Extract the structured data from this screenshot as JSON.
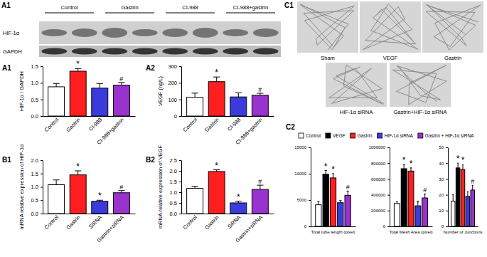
{
  "chart_data": [
    {
      "type": "bar",
      "title": "A1",
      "ylabel": "HIF-1α / GAPDH",
      "categories": [
        "Control",
        "Gastrin",
        "CI-988",
        "CI-988+gastrin"
      ],
      "values": [
        0.88,
        1.35,
        0.84,
        0.93
      ],
      "errors": [
        0.1,
        0.08,
        0.14,
        0.08
      ],
      "colors": [
        "#ffffff",
        "#ff1f1f",
        "#3b3bdc",
        "#9a32cd"
      ],
      "annotations": [
        null,
        "*",
        null,
        "#"
      ],
      "ylim": [
        0,
        1.5
      ],
      "yticks": [
        {
          "value": 0,
          "label": "0.0"
        },
        0.5,
        {
          "value": 1,
          "label": "1.0"
        },
        1.5
      ]
    },
    {
      "type": "bar",
      "title": "A2",
      "ylabel": "VEGF (ng/L)",
      "categories": [
        "Control",
        "Gastrin",
        "CI-988",
        "CI-988+gastrin"
      ],
      "values": [
        113,
        207,
        115,
        125
      ],
      "errors": [
        25,
        28,
        25,
        12
      ],
      "colors": [
        "#ffffff",
        "#ff1f1f",
        "#3b3bdc",
        "#9a32cd"
      ],
      "annotations": [
        null,
        "*",
        null,
        "#"
      ],
      "ylim": [
        0,
        300
      ],
      "yticks": [
        0,
        100,
        200,
        300
      ]
    },
    {
      "type": "bar",
      "title": "B1",
      "ylabel": "mRNA relative expression of HIF-1α",
      "categories": [
        "Control",
        "Gastrin",
        "SiRNA",
        "Gastrin+siRNA"
      ],
      "values": [
        1.08,
        1.45,
        0.46,
        0.78
      ],
      "errors": [
        0.18,
        0.15,
        0.04,
        0.08
      ],
      "colors": [
        "#ffffff",
        "#ff1f1f",
        "#3b3bdc",
        "#9a32cd"
      ],
      "annotations": [
        null,
        "*",
        "*",
        "#"
      ],
      "ylim": [
        0,
        2
      ],
      "yticks": [
        {
          "value": 0,
          "label": "0.0"
        },
        0.5,
        {
          "value": 1,
          "label": "1.0"
        },
        1.5,
        {
          "value": 2,
          "label": "2.0"
        }
      ]
    },
    {
      "type": "bar",
      "title": "B2",
      "ylabel": "mRNA relative expression of VEGF",
      "categories": [
        "Control",
        "Gastrin",
        "SiRNA",
        "Gastrin+siRNA"
      ],
      "values": [
        1.18,
        1.97,
        0.5,
        1.13
      ],
      "errors": [
        0.1,
        0.08,
        0.08,
        0.2
      ],
      "colors": [
        "#ffffff",
        "#ff1f1f",
        "#3b3bdc",
        "#9a32cd"
      ],
      "annotations": [
        null,
        "*",
        "*",
        "#"
      ],
      "ylim": [
        0,
        2.5
      ],
      "yticks": [
        {
          "value": 0,
          "label": "0.0"
        },
        0.5,
        {
          "value": 1,
          "label": "1.0"
        },
        1.5,
        {
          "value": 2,
          "label": "2.0"
        },
        2.5
      ]
    },
    {
      "type": "bar",
      "title": "C2",
      "categories": [
        "Total tube length (pixel)"
      ],
      "series": [
        {
          "name": "Control",
          "color": "#ffffff",
          "values": [
            4100
          ],
          "errors": [
            600
          ],
          "annotations": [
            null
          ]
        },
        {
          "name": "VEGF",
          "color": "#000000",
          "values": [
            9900
          ],
          "errors": [
            700
          ],
          "annotations": [
            "*"
          ]
        },
        {
          "name": "Gastrin",
          "color": "#ff1f1f",
          "values": [
            9200
          ],
          "errors": [
            800
          ],
          "annotations": [
            "*"
          ]
        },
        {
          "name": "HIF-1α siRNA",
          "color": "#3b3bdc",
          "values": [
            4500
          ],
          "errors": [
            400
          ],
          "annotations": [
            null
          ]
        },
        {
          "name": "Gastrin + HIF-1α siRNA",
          "color": "#9a32cd",
          "values": [
            5900
          ],
          "errors": [
            800
          ],
          "annotations": [
            "#"
          ]
        }
      ],
      "legend": "top",
      "ylim": [
        0,
        15000
      ],
      "yticks": [
        0,
        5000,
        10000,
        15000
      ]
    },
    {
      "type": "bar",
      "categories": [
        "Total Mesh Area (pixel)"
      ],
      "series": [
        {
          "color": "#ffffff",
          "values": [
            290000
          ],
          "errors": [
            20000
          ],
          "annotations": [
            null
          ]
        },
        {
          "color": "#000000",
          "values": [
            730000
          ],
          "errors": [
            50000
          ],
          "annotations": [
            "*"
          ]
        },
        {
          "color": "#ff1f1f",
          "values": [
            700000
          ],
          "errors": [
            40000
          ],
          "annotations": [
            "*"
          ]
        },
        {
          "color": "#3b3bdc",
          "values": [
            260000
          ],
          "errors": [
            60000
          ],
          "annotations": [
            null
          ]
        },
        {
          "color": "#9a32cd",
          "values": [
            360000
          ],
          "errors": [
            50000
          ],
          "annotations": [
            "#"
          ]
        }
      ],
      "ylim": [
        0,
        1000000
      ],
      "yticks": [
        0,
        200000,
        400000,
        600000,
        800000,
        1000000
      ]
    },
    {
      "type": "bar",
      "categories": [
        "Number of Junctions"
      ],
      "series": [
        {
          "color": "#ffffff",
          "values": [
            16
          ],
          "errors": [
            4
          ],
          "annotations": [
            null
          ]
        },
        {
          "color": "#000000",
          "values": [
            37
          ],
          "errors": [
            3
          ],
          "annotations": [
            "*"
          ]
        },
        {
          "color": "#ff1f1f",
          "values": [
            36
          ],
          "errors": [
            3
          ],
          "annotations": [
            "*"
          ]
        },
        {
          "color": "#3b3bdc",
          "values": [
            19
          ],
          "errors": [
            3
          ],
          "annotations": [
            null
          ]
        },
        {
          "color": "#9a32cd",
          "values": [
            23
          ],
          "errors": [
            3
          ],
          "annotations": [
            "#"
          ]
        }
      ],
      "ylim": [
        0,
        50
      ],
      "yticks": [
        0,
        10,
        20,
        30,
        40,
        50
      ]
    }
  ],
  "figure": {
    "blot": {
      "title": "A1",
      "columns": [
        "Control",
        "Gastrin",
        "CI-988",
        "CI-988+gastrin"
      ],
      "rows": [
        "HIF-1α",
        "GAPDH"
      ]
    },
    "images": {
      "title": "C1",
      "labels": [
        "Sham",
        "VEGF",
        "Gastrin",
        "HIF-1α siRNA",
        "Gastrin+HIF-1α siRNA"
      ]
    }
  }
}
